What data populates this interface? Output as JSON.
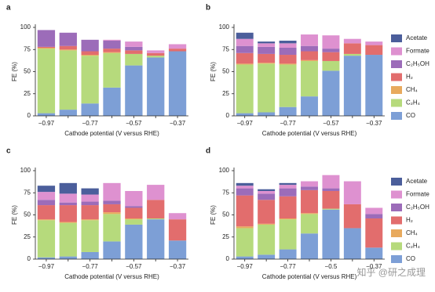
{
  "chart_data": [
    {
      "type": "bar",
      "stacked": true,
      "label": "a",
      "xlabel": "Cathode potential (V versus RHE)",
      "ylabel": "FE (%)",
      "categories": [
        "−0.97",
        null,
        "−0.77",
        null,
        "−0.57",
        null,
        "−0.37"
      ],
      "ylim": [
        0,
        100
      ],
      "yticks": [
        0,
        25,
        50,
        75,
        100
      ],
      "legend": false,
      "series": [
        {
          "name": "CO",
          "color": "#7d9fd6",
          "values": [
            3,
            7,
            14,
            32,
            57,
            66,
            73
          ]
        },
        {
          "name": "C₂H₄",
          "color": "#b6da7c",
          "values": [
            73,
            67,
            54,
            39,
            13,
            2,
            0
          ]
        },
        {
          "name": "CH₄",
          "color": "#e8aa5e",
          "values": [
            1,
            1,
            1,
            1,
            0,
            0,
            0
          ]
        },
        {
          "name": "H₂",
          "color": "#e26d6d",
          "values": [
            1,
            4,
            4,
            4,
            4,
            3,
            3
          ]
        },
        {
          "name": "C₂H₅OH",
          "color": "#9c6cb9",
          "values": [
            19,
            15,
            13,
            9,
            4,
            0,
            0
          ]
        },
        {
          "name": "Formate",
          "color": "#de91d0",
          "values": [
            0,
            0,
            0,
            1,
            6,
            3,
            5
          ]
        },
        {
          "name": "Acetate",
          "color": "#4b5e9b",
          "values": [
            0,
            0,
            0,
            0,
            0,
            0,
            0
          ]
        }
      ]
    },
    {
      "type": "bar",
      "stacked": true,
      "label": "b",
      "xlabel": "Cathode potential (V versus RHE)",
      "ylabel": "FE (%)",
      "categories": [
        "−0.97",
        null,
        "−0.77",
        null,
        "−0.57",
        null,
        "−0.37"
      ],
      "ylim": [
        0,
        100
      ],
      "yticks": [
        0,
        25,
        50,
        75,
        100
      ],
      "legend": true,
      "series": [
        {
          "name": "CO",
          "color": "#7d9fd6",
          "values": [
            3,
            4,
            10,
            22,
            51,
            68,
            69
          ]
        },
        {
          "name": "C₂H₄",
          "color": "#b6da7c",
          "values": [
            55,
            55,
            48,
            40,
            11,
            2,
            0
          ]
        },
        {
          "name": "CH₄",
          "color": "#e8aa5e",
          "values": [
            1,
            1,
            1,
            1,
            0,
            0,
            0
          ]
        },
        {
          "name": "H₂",
          "color": "#e26d6d",
          "values": [
            12,
            10,
            10,
            10,
            10,
            12,
            11
          ]
        },
        {
          "name": "C₂H₅OH",
          "color": "#9c6cb9",
          "values": [
            8,
            8,
            8,
            6,
            4,
            0,
            0
          ]
        },
        {
          "name": "Formate",
          "color": "#de91d0",
          "values": [
            8,
            4,
            5,
            13,
            15,
            5,
            4
          ]
        },
        {
          "name": "Acetate",
          "color": "#4b5e9b",
          "values": [
            7,
            2,
            3,
            0,
            0,
            0,
            0
          ]
        }
      ]
    },
    {
      "type": "bar",
      "stacked": true,
      "label": "c",
      "xlabel": "Cathode potential (V versus RHE)",
      "ylabel": "FE (%)",
      "categories": [
        "−0.97",
        null,
        "−0.77",
        null,
        "−0.57",
        null,
        "−0.37"
      ],
      "ylim": [
        0,
        100
      ],
      "yticks": [
        0,
        25,
        50,
        75,
        100
      ],
      "legend": false,
      "series": [
        {
          "name": "CO",
          "color": "#7d9fd6",
          "values": [
            2,
            3,
            8,
            20,
            39,
            45,
            21
          ]
        },
        {
          "name": "C₂H₄",
          "color": "#b6da7c",
          "values": [
            42,
            38,
            36,
            31,
            6,
            1,
            0
          ]
        },
        {
          "name": "CH₄",
          "color": "#e8aa5e",
          "values": [
            1,
            1,
            1,
            2,
            1,
            0,
            0
          ]
        },
        {
          "name": "H₂",
          "color": "#e26d6d",
          "values": [
            16,
            19,
            16,
            9,
            12,
            21,
            24
          ]
        },
        {
          "name": "C₂H₅OH",
          "color": "#9c6cb9",
          "values": [
            6,
            3,
            4,
            4,
            2,
            0,
            0
          ]
        },
        {
          "name": "Formate",
          "color": "#de91d0",
          "values": [
            9,
            10,
            8,
            20,
            17,
            17,
            7
          ]
        },
        {
          "name": "Acetate",
          "color": "#4b5e9b",
          "values": [
            7,
            12,
            7,
            0,
            0,
            0,
            0
          ]
        }
      ]
    },
    {
      "type": "bar",
      "stacked": true,
      "label": "d",
      "xlabel": "Cathode potential (V versus RHE)",
      "ylabel": "FE (%)",
      "categories": [
        "−0.97",
        null,
        "−0.77",
        null,
        "−0.5",
        null,
        "−0.37"
      ],
      "ylim": [
        0,
        100
      ],
      "yticks": [
        0,
        25,
        50,
        75,
        100
      ],
      "legend": true,
      "series": [
        {
          "name": "CO",
          "color": "#7d9fd6",
          "values": [
            3,
            5,
            11,
            29,
            56,
            35,
            13
          ]
        },
        {
          "name": "C₂H₄",
          "color": "#b6da7c",
          "values": [
            32,
            34,
            34,
            22,
            1,
            0,
            0
          ]
        },
        {
          "name": "CH₄",
          "color": "#e8aa5e",
          "values": [
            2,
            1,
            1,
            1,
            0,
            0,
            0
          ]
        },
        {
          "name": "H₂",
          "color": "#e26d6d",
          "values": [
            35,
            27,
            25,
            26,
            20,
            27,
            33
          ]
        },
        {
          "name": "C₂H₅OH",
          "color": "#9c6cb9",
          "values": [
            8,
            7,
            9,
            4,
            3,
            0,
            5
          ]
        },
        {
          "name": "Formate",
          "color": "#de91d0",
          "values": [
            3,
            3,
            4,
            6,
            15,
            26,
            7
          ]
        },
        {
          "name": "Acetate",
          "color": "#4b5e9b",
          "values": [
            3,
            2,
            2,
            0,
            0,
            0,
            0
          ]
        }
      ]
    }
  ],
  "watermark": "知乎 @研之成理"
}
